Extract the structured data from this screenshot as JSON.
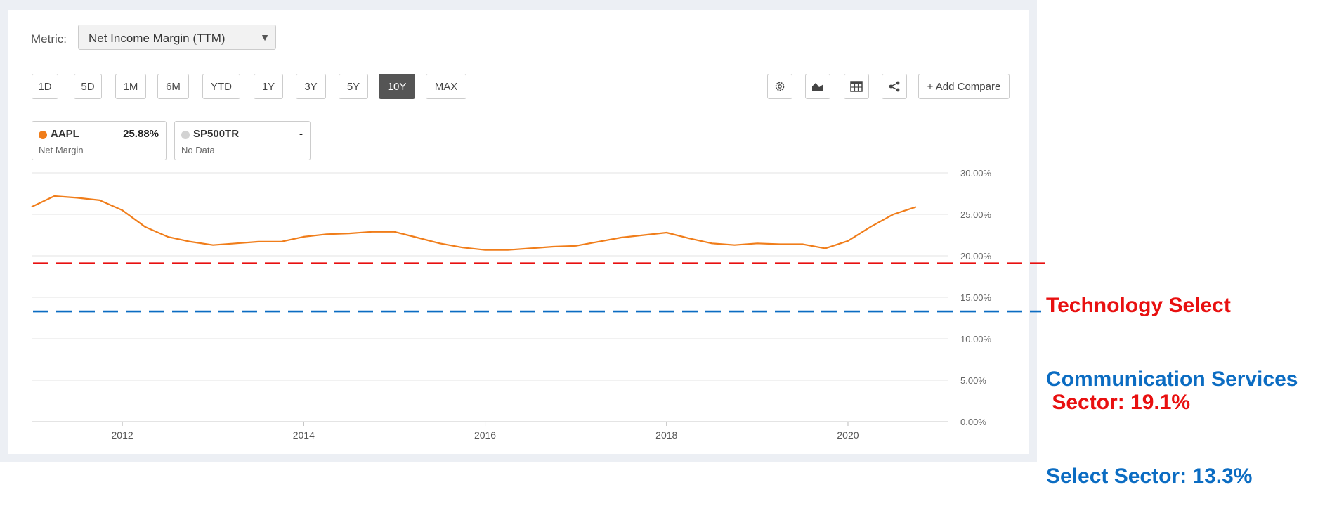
{
  "metric": {
    "label": "Metric:",
    "value": "Net Income Margin (TTM)"
  },
  "ranges": [
    "1D",
    "5D",
    "1M",
    "6M",
    "YTD",
    "1Y",
    "3Y",
    "5Y",
    "10Y",
    "MAX"
  ],
  "active_range": "10Y",
  "tools": {
    "icons": [
      "gear-icon",
      "area-chart-icon",
      "table-icon",
      "share-icon"
    ],
    "compare_label": "+ Add Compare"
  },
  "legend": [
    {
      "ticker": "AAPL",
      "value": "25.88%",
      "sub": "Net Margin",
      "color": "#f07d1a"
    },
    {
      "ticker": "SP500TR",
      "value": "-",
      "sub": "No Data",
      "color": "#d3d3d3"
    }
  ],
  "annotations": {
    "tech": {
      "line1": "Technology Select",
      "line2": " Sector: 19.1%",
      "value": 19.1,
      "color": "#e81010"
    },
    "comm": {
      "line1": "Communication Services",
      "line2": "Select Sector: 13.3%",
      "value": 13.3,
      "color": "#0b6cc2"
    }
  },
  "chart_data": {
    "type": "line",
    "ylim": [
      0,
      30
    ],
    "yticks": [
      "0.00%",
      "5.00%",
      "10.00%",
      "15.00%",
      "20.00%",
      "25.00%",
      "30.00%"
    ],
    "xticks": [
      "2012",
      "2014",
      "2016",
      "2018",
      "2020"
    ],
    "series": [
      {
        "name": "AAPL",
        "color": "#f07d1a",
        "x": [
          2011.0,
          2011.25,
          2011.5,
          2011.75,
          2012.0,
          2012.25,
          2012.5,
          2012.75,
          2013.0,
          2013.25,
          2013.5,
          2013.75,
          2014.0,
          2014.25,
          2014.5,
          2014.75,
          2015.0,
          2015.25,
          2015.5,
          2015.75,
          2016.0,
          2016.25,
          2016.5,
          2016.75,
          2017.0,
          2017.25,
          2017.5,
          2017.75,
          2018.0,
          2018.25,
          2018.5,
          2018.75,
          2019.0,
          2019.25,
          2019.5,
          2019.75,
          2020.0,
          2020.25,
          2020.5,
          2020.75
        ],
        "y": [
          25.9,
          27.2,
          27.0,
          26.7,
          25.5,
          23.5,
          22.3,
          21.7,
          21.3,
          21.5,
          21.7,
          21.7,
          22.3,
          22.6,
          22.7,
          22.9,
          22.9,
          22.2,
          21.5,
          21.0,
          20.7,
          20.7,
          20.9,
          21.1,
          21.2,
          21.7,
          22.2,
          22.5,
          22.8,
          22.1,
          21.5,
          21.3,
          21.5,
          21.4,
          21.4,
          20.9,
          21.8,
          23.5,
          25.0,
          25.9
        ]
      }
    ]
  }
}
